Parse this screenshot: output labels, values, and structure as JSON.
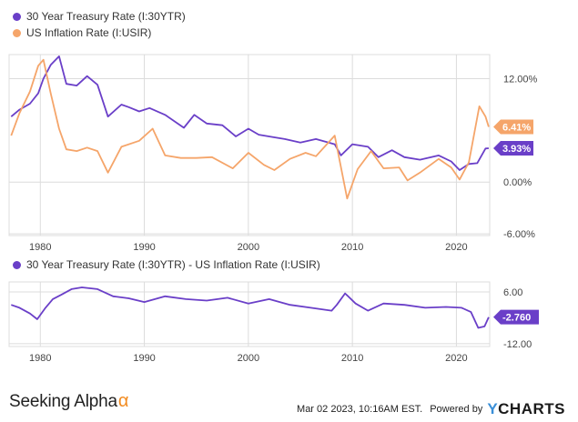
{
  "legend": {
    "series1": "30 Year Treasury Rate (I:30YTR)",
    "series2": "US Inflation Rate (I:USIR)",
    "spread": "30 Year Treasury Rate (I:30YTR) - US Inflation Rate (I:USIR)"
  },
  "colors": {
    "treasury": "#6a3fc8",
    "inflation": "#f5a56a",
    "grid": "#dcdcdc"
  },
  "footer": {
    "brand": "Seeking Alpha",
    "brand_mark": "α",
    "timestamp": "Mar 02 2023, 10:16AM EST.",
    "powered_by": "Powered by",
    "logo_y": "Y",
    "logo_rest": "CHARTS"
  },
  "chart_data": [
    {
      "type": "line",
      "xlim": [
        1977,
        2023.2
      ],
      "ylim": [
        -6.2,
        14.8
      ],
      "x_ticks": [
        1980,
        1990,
        2000,
        2010,
        2020
      ],
      "x_tick_labels": [
        "1980",
        "1990",
        "2000",
        "2010",
        "2020"
      ],
      "y_ticks": [
        12,
        0,
        -6
      ],
      "y_tick_labels": [
        "12.00%",
        "0.00%",
        "-6.00%"
      ],
      "end_labels": [
        {
          "series": "inflation",
          "text": "6.41%",
          "value": 6.41
        },
        {
          "series": "treasury",
          "text": "3.93%",
          "value": 3.93
        }
      ],
      "series": [
        {
          "key": "treasury",
          "name": "30 Year Treasury Rate (I:30YTR)",
          "x": [
            1977.2,
            1978,
            1979,
            1979.8,
            1980.3,
            1981,
            1981.8,
            1982.5,
            1983.5,
            1984.5,
            1985.5,
            1986.5,
            1987.8,
            1988.5,
            1989.5,
            1990.5,
            1992,
            1993.8,
            1994.8,
            1996,
            1997.5,
            1998.8,
            2000,
            2001,
            2002.5,
            2003.5,
            2005,
            2006.5,
            2008.3,
            2008.9,
            2010,
            2011.5,
            2012.5,
            2013.8,
            2015,
            2016.5,
            2018.3,
            2019.5,
            2020.3,
            2021.2,
            2022,
            2022.8,
            2023.1
          ],
          "y": [
            7.6,
            8.4,
            9.1,
            10.3,
            12.0,
            13.6,
            14.6,
            11.4,
            11.2,
            12.3,
            11.3,
            7.6,
            9.0,
            8.7,
            8.2,
            8.6,
            7.8,
            6.3,
            7.8,
            6.8,
            6.6,
            5.3,
            6.2,
            5.5,
            5.2,
            5.0,
            4.6,
            5.0,
            4.4,
            3.1,
            4.4,
            4.1,
            2.9,
            3.7,
            2.9,
            2.6,
            3.1,
            2.4,
            1.4,
            2.1,
            2.2,
            3.9,
            3.93
          ]
        },
        {
          "key": "inflation",
          "name": "US Inflation Rate (I:USIR)",
          "x": [
            1977.2,
            1978,
            1979,
            1979.8,
            1980.3,
            1981,
            1981.8,
            1982.5,
            1983.5,
            1984.5,
            1985.5,
            1986.5,
            1987.8,
            1989.5,
            1990.8,
            1992,
            1993.5,
            1995,
            1996.5,
            1998.5,
            2000,
            2001.5,
            2002.5,
            2004,
            2005.5,
            2006.5,
            2008.3,
            2009.5,
            2010.5,
            2011.8,
            2013,
            2014.5,
            2015.3,
            2016.5,
            2018.3,
            2019.5,
            2020.3,
            2021.2,
            2022.2,
            2022.8,
            2023.1
          ],
          "y": [
            5.4,
            8.0,
            10.5,
            13.5,
            14.2,
            10.3,
            6.2,
            3.8,
            3.6,
            4.0,
            3.6,
            1.1,
            4.1,
            4.8,
            6.2,
            3.1,
            2.8,
            2.8,
            2.9,
            1.6,
            3.4,
            2.0,
            1.4,
            2.7,
            3.4,
            3.0,
            5.4,
            -1.9,
            1.5,
            3.6,
            1.6,
            1.7,
            0.2,
            1.1,
            2.7,
            1.7,
            0.3,
            2.3,
            8.8,
            7.6,
            6.41
          ]
        }
      ]
    },
    {
      "type": "line",
      "xlim": [
        1977,
        2023.2
      ],
      "ylim": [
        -13,
        9.5
      ],
      "x_ticks": [
        1980,
        1990,
        2000,
        2010,
        2020
      ],
      "x_tick_labels": [
        "1980",
        "1990",
        "2000",
        "2010",
        "2020"
      ],
      "y_ticks": [
        6,
        -12
      ],
      "y_tick_labels": [
        "6.00",
        "-12.00"
      ],
      "end_labels": [
        {
          "series": "spread",
          "text": "-2.760",
          "value": -2.76
        }
      ],
      "series": [
        {
          "key": "spread",
          "name": "30 Year Treasury Rate (I:30YTR) - US Inflation Rate (I:USIR)",
          "x": [
            1977.2,
            1978,
            1979,
            1979.7,
            1980.5,
            1981.2,
            1982,
            1983,
            1984,
            1985.5,
            1987,
            1988.5,
            1990,
            1992,
            1994,
            1996,
            1998,
            2000,
            2002,
            2004,
            2006,
            2008,
            2008.5,
            2009.3,
            2010.3,
            2011.5,
            2013,
            2015,
            2017,
            2019,
            2020.5,
            2021.4,
            2022.1,
            2022.7,
            2023.1
          ],
          "y": [
            1.5,
            0.5,
            -1.5,
            -3.5,
            0.5,
            3.5,
            5.0,
            7.0,
            7.6,
            7.0,
            4.5,
            3.8,
            2.5,
            4.5,
            3.5,
            3.0,
            4.0,
            2.0,
            3.5,
            1.5,
            0.5,
            -0.5,
            1.5,
            5.5,
            2.0,
            -0.5,
            2.0,
            1.5,
            0.5,
            0.8,
            0.5,
            -1.0,
            -6.5,
            -6.0,
            -2.76
          ]
        }
      ]
    }
  ]
}
